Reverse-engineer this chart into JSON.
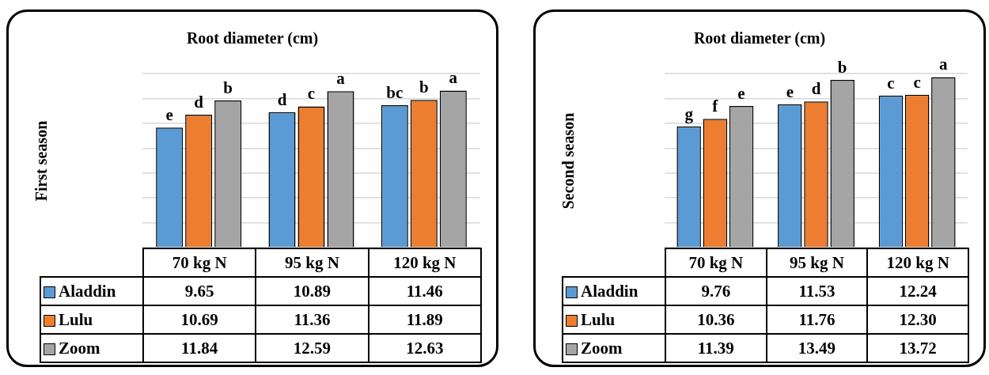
{
  "chart_data": [
    {
      "type": "bar",
      "title": "Root diameter (cm)",
      "ylabel": "First season",
      "categories": [
        "70 kg N",
        "95 kg N",
        "120 kg N"
      ],
      "series": [
        {
          "name": "Aladdin",
          "color": "#5b9bd5",
          "values": [
            9.65,
            10.89,
            11.46
          ],
          "value_labels": [
            "9.65",
            "10.89",
            "11.46"
          ]
        },
        {
          "name": "Lulu",
          "color": "#ed7d31",
          "values": [
            10.69,
            11.36,
            11.89
          ],
          "value_labels": [
            "10.69",
            "11.36",
            "11.89"
          ]
        },
        {
          "name": "Zoom",
          "color": "#a5a5a5",
          "values": [
            11.84,
            12.59,
            12.63
          ],
          "value_labels": [
            "11.84",
            "12.59",
            "12.63"
          ]
        }
      ],
      "grid": "y",
      "tick_labels": false,
      "legend": "bottom left",
      "annotations": [
        "e",
        "d",
        "b",
        "d",
        "c",
        "a",
        "bc",
        "b",
        "a"
      ]
    },
    {
      "type": "bar",
      "title": "Root diameter (cm)",
      "ylabel": "Second season",
      "categories": [
        "70 kg N",
        "95 kg N",
        "120 kg N"
      ],
      "series": [
        {
          "name": "Aladdin",
          "color": "#5b9bd5",
          "values": [
            9.76,
            11.53,
            12.24
          ],
          "value_labels": [
            "9.76",
            "11.53",
            "12.24"
          ]
        },
        {
          "name": "Lulu",
          "color": "#ed7d31",
          "values": [
            10.36,
            11.76,
            12.3
          ],
          "value_labels": [
            "10.36",
            "11.76",
            "12.30"
          ]
        },
        {
          "name": "Zoom",
          "color": "#a5a5a5",
          "values": [
            11.39,
            13.49,
            13.72
          ],
          "value_labels": [
            "11.39",
            "13.49",
            "13.72"
          ]
        }
      ],
      "grid": "y",
      "tick_labels": false,
      "legend": "bottom left",
      "annotations": [
        "g",
        "f",
        "e",
        "e",
        "d",
        "b",
        "c",
        "c",
        "a"
      ]
    }
  ]
}
